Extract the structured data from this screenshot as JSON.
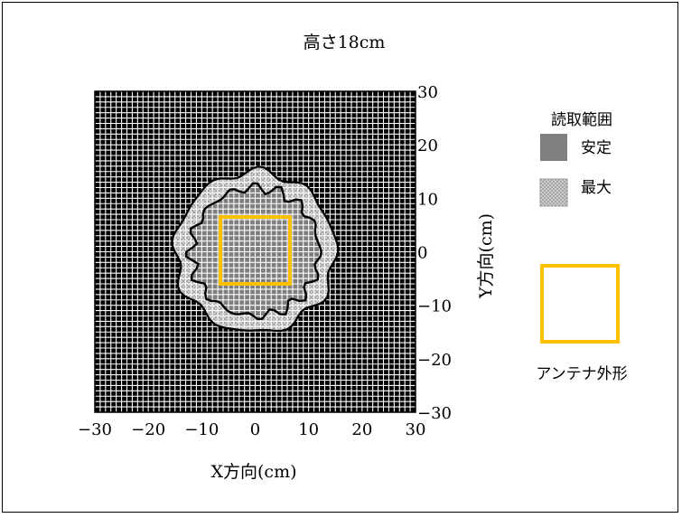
{
  "chart_data": {
    "type": "heatmap",
    "title": "高さ18cm",
    "xlabel": "X方向(cm)",
    "ylabel": "Y方向(cm)",
    "xlim": [
      -30,
      30
    ],
    "ylim": [
      -30,
      30
    ],
    "xticks": [
      -30,
      -20,
      -10,
      0,
      10,
      20,
      30
    ],
    "yticks": [
      30,
      20,
      10,
      0,
      -10,
      -20,
      -30
    ],
    "grid": true,
    "legend_title": "読取範囲",
    "legend": [
      {
        "name": "安定",
        "color": "#7f7f7f",
        "pattern": "solid"
      },
      {
        "name": "最大",
        "color": "#bfbfbf",
        "pattern": "crosshatch"
      }
    ],
    "antenna": {
      "label": "アンテナ外形",
      "color": "#ffc000",
      "x": [
        -6.5,
        6.5
      ],
      "y": [
        -6,
        6.5
      ]
    },
    "regions": {
      "stable_radius_cm": 12,
      "max_radius_cm": 15
    },
    "background_color": "#000000",
    "grid_color": "#ffffff"
  }
}
